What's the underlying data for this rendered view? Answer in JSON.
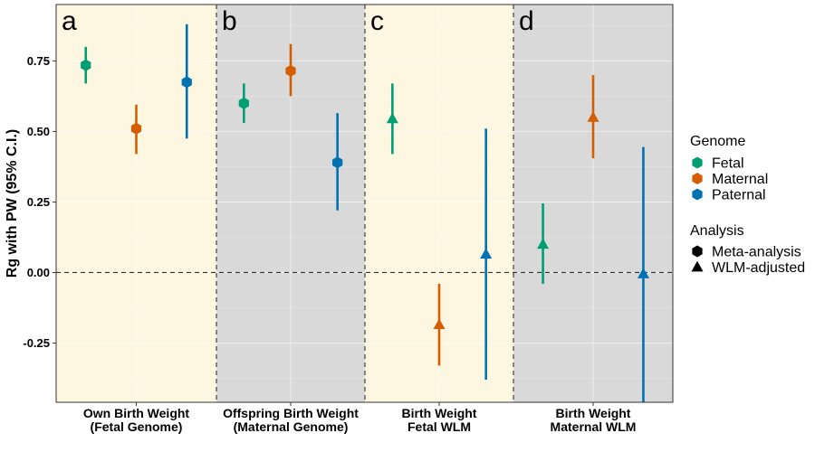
{
  "chart_data": {
    "type": "scatter",
    "ylabel": "Rg with PW (95% C.I.)",
    "ylim": [
      -0.46,
      0.95
    ],
    "yticks": [
      -0.25,
      0.0,
      0.25,
      0.5,
      0.75
    ],
    "ytick_labels": [
      "-0.25",
      "0.00",
      "0.25",
      "0.50",
      "0.75"
    ],
    "reference_line": 0.0,
    "grid": true,
    "panels": [
      {
        "letter": "a",
        "label_line1": "Own Birth Weight",
        "label_line2": "(Fetal Genome)",
        "background": "#fdf6e1"
      },
      {
        "letter": "b",
        "label_line1": "Offspring Birth Weight",
        "label_line2": "(Maternal Genome)",
        "background": "#d9d9d9"
      },
      {
        "letter": "c",
        "label_line1": "Birth Weight",
        "label_line2": "Fetal WLM",
        "background": "#fdf6e1"
      },
      {
        "letter": "d",
        "label_line1": "Birth Weight",
        "label_line2": "Maternal WLM",
        "background": "#d9d9d9"
      }
    ],
    "genomes": [
      {
        "name": "Fetal",
        "color": "#009e73"
      },
      {
        "name": "Maternal",
        "color": "#d55e00"
      },
      {
        "name": "Paternal",
        "color": "#0072b2"
      }
    ],
    "analyses": [
      {
        "name": "Meta-analysis",
        "shape": "hexagon"
      },
      {
        "name": "WLM-adjusted",
        "shape": "triangle"
      }
    ],
    "points": [
      {
        "panel": 0,
        "genome": "Fetal",
        "analysis": "Meta-analysis",
        "y": 0.735,
        "lo": 0.67,
        "hi": 0.8
      },
      {
        "panel": 0,
        "genome": "Maternal",
        "analysis": "Meta-analysis",
        "y": 0.51,
        "lo": 0.42,
        "hi": 0.595
      },
      {
        "panel": 0,
        "genome": "Paternal",
        "analysis": "Meta-analysis",
        "y": 0.675,
        "lo": 0.475,
        "hi": 0.88
      },
      {
        "panel": 1,
        "genome": "Fetal",
        "analysis": "Meta-analysis",
        "y": 0.6,
        "lo": 0.53,
        "hi": 0.67
      },
      {
        "panel": 1,
        "genome": "Maternal",
        "analysis": "Meta-analysis",
        "y": 0.715,
        "lo": 0.625,
        "hi": 0.81
      },
      {
        "panel": 1,
        "genome": "Paternal",
        "analysis": "Meta-analysis",
        "y": 0.39,
        "lo": 0.22,
        "hi": 0.565
      },
      {
        "panel": 2,
        "genome": "Fetal",
        "analysis": "WLM-adjusted",
        "y": 0.545,
        "lo": 0.42,
        "hi": 0.67
      },
      {
        "panel": 2,
        "genome": "Maternal",
        "analysis": "WLM-adjusted",
        "y": -0.185,
        "lo": -0.33,
        "hi": -0.04
      },
      {
        "panel": 2,
        "genome": "Paternal",
        "analysis": "WLM-adjusted",
        "y": 0.065,
        "lo": -0.38,
        "hi": 0.51
      },
      {
        "panel": 3,
        "genome": "Fetal",
        "analysis": "WLM-adjusted",
        "y": 0.1,
        "lo": -0.04,
        "hi": 0.245
      },
      {
        "panel": 3,
        "genome": "Maternal",
        "analysis": "WLM-adjusted",
        "y": 0.55,
        "lo": 0.405,
        "hi": 0.7
      },
      {
        "panel": 3,
        "genome": "Paternal",
        "analysis": "WLM-adjusted",
        "y": -0.005,
        "lo": -0.46,
        "hi": 0.445
      }
    ],
    "legend": {
      "placement": "right",
      "genome_title": "Genome",
      "analysis_title": "Analysis"
    }
  }
}
